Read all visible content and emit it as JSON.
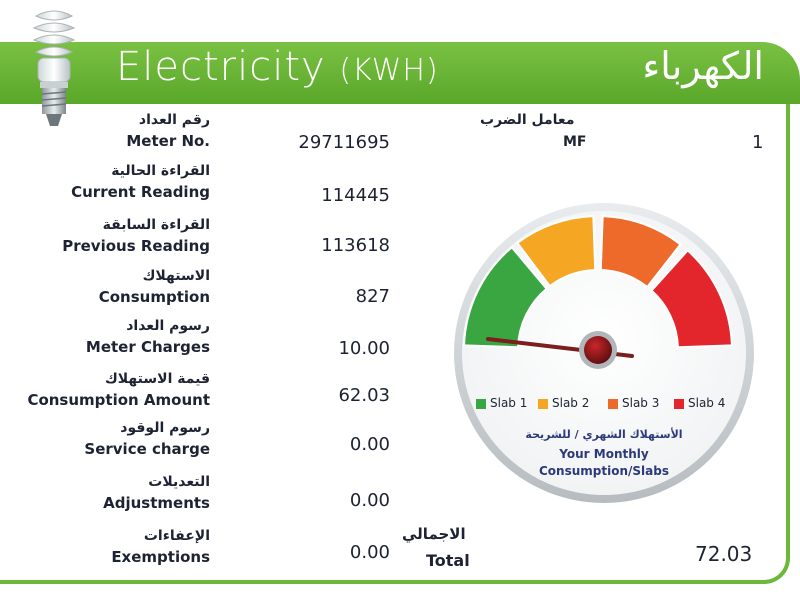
{
  "header": {
    "title_en": "Electricity",
    "unit_en": "(KWH)",
    "title_ar": "الكهرباء",
    "bulb_icon": "cfl-bulb-icon",
    "accent_color": "#6cb838"
  },
  "rows": [
    {
      "label_ar": "رقم العداد",
      "label_en": "Meter No.",
      "value": "29711695"
    },
    {
      "label_ar": "القراءة الحالية",
      "label_en": "Current Reading",
      "value": "114445"
    },
    {
      "label_ar": "القراءة السابقة",
      "label_en": "Previous Reading",
      "value": "113618"
    },
    {
      "label_ar": "الاستهلاك",
      "label_en": "Consumption",
      "value": "827"
    },
    {
      "label_ar": "رسوم العداد",
      "label_en": "Meter Charges",
      "value": "10.00"
    },
    {
      "label_ar": "قيمة الاستهلاك",
      "label_en": "Consumption Amount",
      "value": "62.03"
    },
    {
      "label_ar": "رسوم الوقود",
      "label_en": "Service charge",
      "value": "0.00"
    },
    {
      "label_ar": "التعديلات",
      "label_en": "Adjustments",
      "value": "0.00"
    },
    {
      "label_ar": "الإعفاءات",
      "label_en": "Exemptions",
      "value": "0.00"
    }
  ],
  "mf": {
    "label_ar": "معامل الضرب",
    "label_en": "MF",
    "value": "1"
  },
  "total": {
    "label_ar": "الاجمالي",
    "label_en": "Total",
    "value": "72.03"
  },
  "gauge": {
    "slabs": [
      {
        "label": "Slab 1",
        "color": "#3aa642"
      },
      {
        "label": "Slab 2",
        "color": "#f5a623"
      },
      {
        "label": "Slab 3",
        "color": "#ee6a2a"
      },
      {
        "label": "Slab 4",
        "color": "#e3262b"
      }
    ],
    "needle_icon": "gauge-needle-icon",
    "caption_ar": "الأستهلاك الشهري / للشريحة",
    "caption_en_line1": "Your Monthly",
    "caption_en_line2": "Consumption/Slabs"
  }
}
